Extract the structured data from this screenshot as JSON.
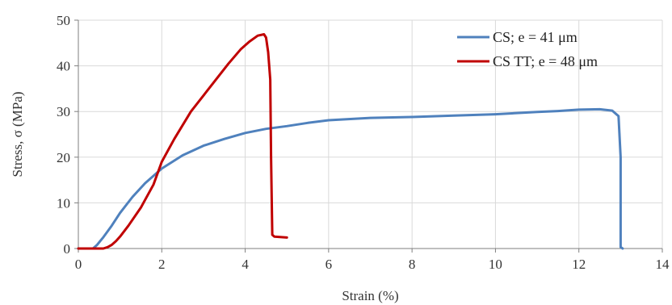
{
  "chart_data": {
    "type": "line",
    "title": "",
    "xlabel": "Strain (%)",
    "ylabel": "Stress, σ (MPa)",
    "xlim": [
      0,
      14
    ],
    "ylim": [
      0,
      50
    ],
    "xticks": [
      0,
      2,
      4,
      6,
      8,
      10,
      12,
      14
    ],
    "yticks": [
      0,
      10,
      20,
      30,
      40,
      50
    ],
    "grid": true,
    "legend_position": "top-right",
    "series": [
      {
        "name": "CS; e = 41 μm",
        "color": "#4f81bd",
        "x": [
          0,
          0.35,
          0.45,
          0.6,
          0.8,
          1.0,
          1.3,
          1.6,
          2.0,
          2.5,
          3.0,
          3.5,
          4.0,
          4.5,
          5.0,
          5.5,
          6.0,
          7.0,
          8.0,
          9.0,
          10.0,
          11.0,
          11.5,
          12.0,
          12.5,
          12.8,
          12.95,
          13.0,
          13.0,
          13.05
        ],
        "y": [
          0,
          0,
          0.8,
          2.5,
          5.0,
          7.8,
          11.3,
          14.3,
          17.5,
          20.4,
          22.5,
          24.0,
          25.3,
          26.2,
          26.8,
          27.5,
          28.1,
          28.6,
          28.8,
          29.1,
          29.4,
          29.9,
          30.1,
          30.4,
          30.5,
          30.2,
          29.0,
          20.0,
          0.3,
          0
        ]
      },
      {
        "name": "CS TT; e = 48 μm",
        "color": "#c00000",
        "x": [
          0,
          0.6,
          0.7,
          0.8,
          0.9,
          1.0,
          1.2,
          1.5,
          1.8,
          2.0,
          2.3,
          2.7,
          3.0,
          3.3,
          3.6,
          3.9,
          4.1,
          4.3,
          4.45,
          4.5,
          4.55,
          4.6,
          4.62,
          4.65,
          4.7,
          5.0
        ],
        "y": [
          0,
          0,
          0.3,
          0.8,
          1.6,
          2.6,
          5.0,
          9.0,
          14.0,
          19.0,
          24.0,
          30.0,
          33.5,
          37.0,
          40.5,
          43.7,
          45.3,
          46.6,
          46.9,
          46.2,
          43.0,
          37.0,
          20.0,
          3.0,
          2.6,
          2.4
        ]
      }
    ]
  }
}
